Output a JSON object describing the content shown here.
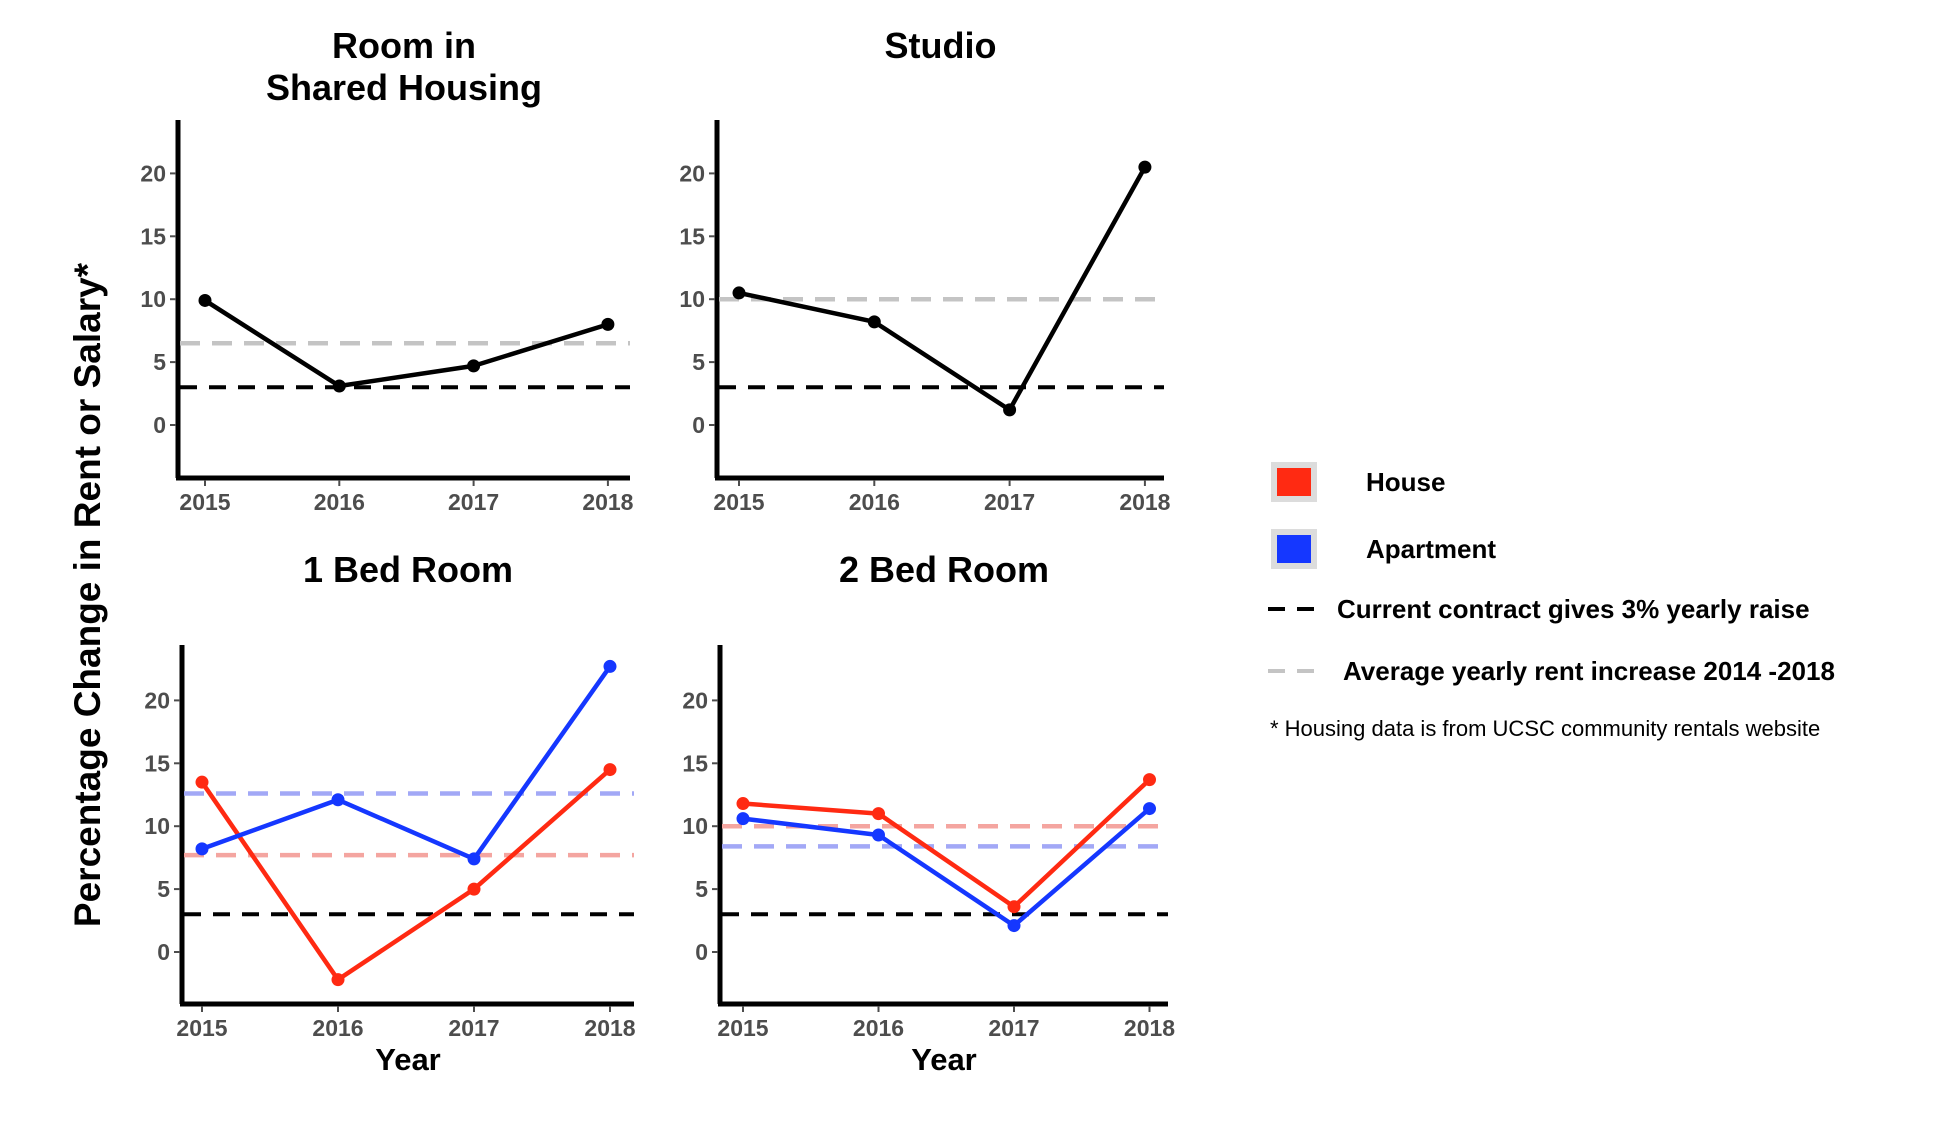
{
  "ylabel": "Percentage Change in Rent or Salary*",
  "colors": {
    "house": "#ff2a12",
    "apartment": "#1537ff",
    "single": "#000000",
    "contract": "#000000",
    "average_single": "#c4c4c4",
    "average_house": "#f4a5a0",
    "average_apartment": "#a2a8f6"
  },
  "legend": {
    "items": [
      {
        "label": "House",
        "type": "swatch",
        "color": "#ff2a12"
      },
      {
        "label": "Apartment",
        "type": "swatch",
        "color": "#1537ff"
      },
      {
        "label": "Current contract gives 3% yearly raise",
        "type": "dash",
        "color": "#000000"
      },
      {
        "label": "Average yearly rent increase 2014 -2018",
        "type": "dash",
        "color": "#c4c4c4"
      }
    ],
    "note": "* Housing data is from UCSC community rentals website"
  },
  "chart_data": [
    {
      "type": "line",
      "title": "Room in Shared Housing",
      "title_lines": [
        "Room in",
        "Shared Housing"
      ],
      "xlabel": "",
      "x": [
        2015,
        2016,
        2017,
        2018
      ],
      "x_tick_labels": [
        "2015",
        "2016",
        "2017",
        "2018"
      ],
      "y_ticks": [
        0,
        5,
        10,
        15,
        20
      ],
      "ylim": [
        -4,
        24
      ],
      "series": [
        {
          "role": "single",
          "values": [
            9.9,
            3.1,
            4.7,
            8.0
          ]
        }
      ],
      "reference_lines": [
        {
          "role": "contract",
          "value": 3
        },
        {
          "role": "average_single",
          "value": 6.5
        }
      ]
    },
    {
      "type": "line",
      "title": "Studio",
      "title_lines": [
        "Studio"
      ],
      "xlabel": "",
      "x": [
        2015,
        2016,
        2017,
        2018
      ],
      "x_tick_labels": [
        "2015",
        "2016",
        "2017",
        "2018"
      ],
      "y_ticks": [
        0,
        5,
        10,
        15,
        20
      ],
      "ylim": [
        -4,
        24
      ],
      "series": [
        {
          "role": "single",
          "values": [
            10.5,
            8.2,
            1.2,
            20.5
          ]
        }
      ],
      "reference_lines": [
        {
          "role": "contract",
          "value": 3
        },
        {
          "role": "average_single",
          "value": 10
        }
      ]
    },
    {
      "type": "line",
      "title": "1 Bed Room",
      "title_lines": [
        "1 Bed Room"
      ],
      "xlabel": "Year",
      "x": [
        2015,
        2016,
        2017,
        2018
      ],
      "x_tick_labels": [
        "2015",
        "2016",
        "2017",
        "2018"
      ],
      "y_ticks": [
        0,
        5,
        10,
        15,
        20
      ],
      "ylim": [
        -4,
        24
      ],
      "series": [
        {
          "role": "house",
          "name": "House",
          "values": [
            13.5,
            -2.2,
            5.0,
            14.5
          ]
        },
        {
          "role": "apartment",
          "name": "Apartment",
          "values": [
            8.2,
            12.1,
            7.4,
            22.7
          ]
        }
      ],
      "reference_lines": [
        {
          "role": "contract",
          "value": 3
        },
        {
          "role": "average_house",
          "value": 7.7
        },
        {
          "role": "average_apartment",
          "value": 12.6
        }
      ]
    },
    {
      "type": "line",
      "title": "2 Bed Room",
      "title_lines": [
        "2 Bed Room"
      ],
      "xlabel": "Year",
      "x": [
        2015,
        2016,
        2017,
        2018
      ],
      "x_tick_labels": [
        "2015",
        "2016",
        "2017",
        "2018"
      ],
      "y_ticks": [
        0,
        5,
        10,
        15,
        20
      ],
      "ylim": [
        -4,
        24
      ],
      "series": [
        {
          "role": "house",
          "name": "House",
          "values": [
            11.8,
            11.0,
            3.6,
            13.7
          ]
        },
        {
          "role": "apartment",
          "name": "Apartment",
          "values": [
            10.6,
            9.3,
            2.1,
            11.4
          ]
        }
      ],
      "reference_lines": [
        {
          "role": "contract",
          "value": 3
        },
        {
          "role": "average_house",
          "value": 10
        },
        {
          "role": "average_apartment",
          "value": 8.4
        }
      ]
    }
  ]
}
